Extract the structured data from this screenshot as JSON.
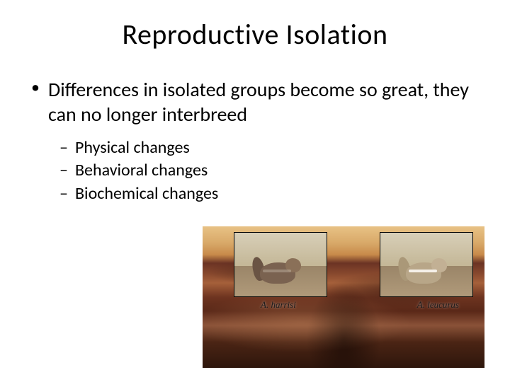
{
  "title": "Reproductive Isolation",
  "main_bullet": "Differences in isolated groups become so great, they can no longer interbreed",
  "sub_bullets": {
    "item0": "Physical changes",
    "item1": "Behavioral changes",
    "item2": "Biochemical changes"
  },
  "figure": {
    "species_left": "A. harrisi",
    "species_right": "A. leucurus",
    "canyon_colors": {
      "sky": "#e8c285",
      "rock_light": "#a5603a",
      "rock_dark": "#5a2818",
      "shadow": "#2e160c"
    },
    "inset_bg": "#c9b89a",
    "border_color": "#000000",
    "squirrel_harrisi_color": "#7a6250",
    "squirrel_leucurus_color": "#b8a688",
    "label_font": "italic serif",
    "label_fontsize": 13
  },
  "typography": {
    "title_fontsize": 40,
    "body_fontsize": 28,
    "sub_fontsize": 24,
    "font_family": "Calibri",
    "text_color": "#000000",
    "background_color": "#ffffff"
  }
}
